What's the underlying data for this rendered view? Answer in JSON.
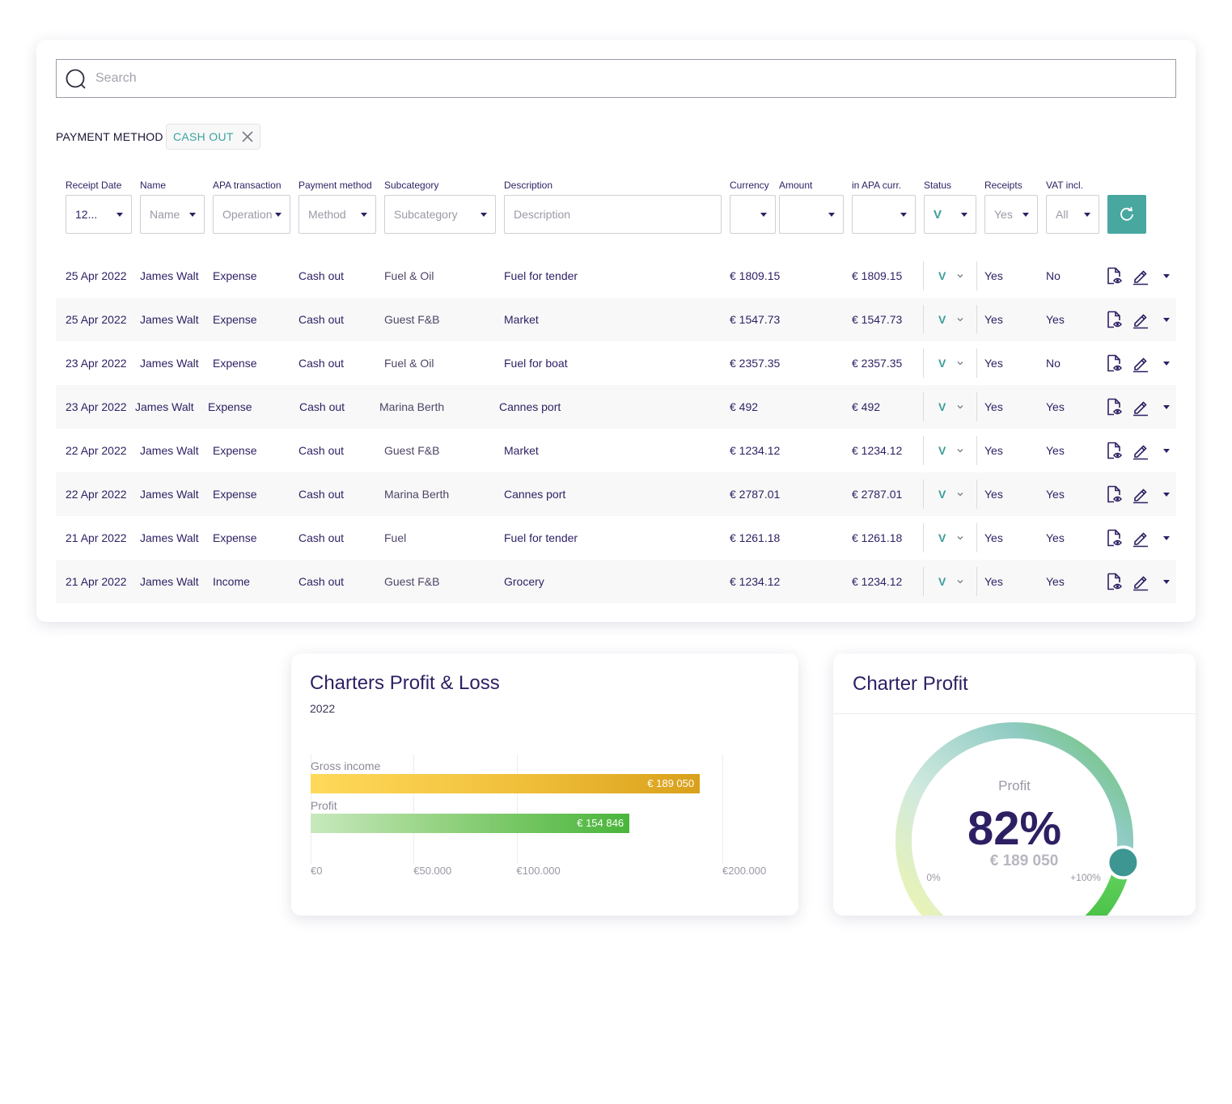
{
  "search": {
    "placeholder": "Search"
  },
  "filter": {
    "label": "PAYMENT METHOD",
    "chip": "CASH OUT"
  },
  "columns": {
    "receipt_date": "Receipt Date",
    "name": "Name",
    "apa_transaction": "APA transaction",
    "payment_method": "Payment method",
    "subcategory": "Subcategory",
    "description": "Description",
    "currency": "Currency",
    "amount": "Amount",
    "in_apa_curr": "in APA curr.",
    "status": "Status",
    "receipts": "Receipts",
    "vat_incl": "VAT incl."
  },
  "controls": {
    "receipt_date": "12...",
    "name": "Name",
    "operation": "Operation",
    "method": "Method",
    "subcategory": "Subcategory",
    "description": "Description",
    "currency": "",
    "amount": "",
    "in_apa_curr": "",
    "status": "V",
    "receipts": "Yes",
    "vat": "All"
  },
  "rows": [
    {
      "date": "25 Apr 2022",
      "name": "James Walt",
      "apa": "Expense",
      "method": "Cash out",
      "subcategory": "Fuel & Oil",
      "description": "Fuel for tender",
      "amount": "€ 1809.15",
      "apa_amount": "€ 1809.15",
      "status": "V",
      "receipts": "Yes",
      "vat": "No"
    },
    {
      "date": "25 Apr 2022",
      "name": "James Walt",
      "apa": "Expense",
      "method": "Cash out",
      "subcategory": "Guest F&B",
      "description": "Market",
      "amount": "€ 1547.73",
      "apa_amount": "€ 1547.73",
      "status": "V",
      "receipts": "Yes",
      "vat": "Yes"
    },
    {
      "date": "23 Apr 2022",
      "name": "James Walt",
      "apa": "Expense",
      "method": "Cash out",
      "subcategory": "Fuel & Oil",
      "description": "Fuel for boat",
      "amount": "€ 2357.35",
      "apa_amount": "€ 2357.35",
      "status": "V",
      "receipts": "Yes",
      "vat": "No"
    },
    {
      "date": "23 Apr 2022",
      "name": "James Walt",
      "apa": "Expense",
      "method": "Cash out",
      "subcategory": "Marina Berth",
      "description": "Cannes port",
      "amount": "€ 492",
      "apa_amount": "€ 492",
      "status": "V",
      "receipts": "Yes",
      "vat": "Yes"
    },
    {
      "date": "22 Apr 2022",
      "name": "James Walt",
      "apa": "Expense",
      "method": "Cash out",
      "subcategory": "Guest F&B",
      "description": "Market",
      "amount": "€ 1234.12",
      "apa_amount": "€ 1234.12",
      "status": "V",
      "receipts": "Yes",
      "vat": "Yes"
    },
    {
      "date": "22 Apr 2022",
      "name": "James Walt",
      "apa": "Expense",
      "method": "Cash out",
      "subcategory": "Marina Berth",
      "description": "Cannes port",
      "amount": "€ 2787.01",
      "apa_amount": "€ 2787.01",
      "status": "V",
      "receipts": "Yes",
      "vat": "Yes"
    },
    {
      "date": "21 Apr 2022",
      "name": "James Walt",
      "apa": "Expense",
      "method": "Cash out",
      "subcategory": "Fuel",
      "description": "Fuel for tender",
      "amount": "€ 1261.18",
      "apa_amount": "€ 1261.18",
      "status": "V",
      "receipts": "Yes",
      "vat": "Yes"
    },
    {
      "date": "21 Apr 2022",
      "name": "James Walt",
      "apa": "Income",
      "method": "Cash out",
      "subcategory": "Guest F&B",
      "description": "Grocery",
      "amount": "€ 1234.12",
      "apa_amount": "€ 1234.12",
      "status": "V",
      "receipts": "Yes",
      "vat": "Yes"
    }
  ],
  "pl_card": {
    "title": "Charters Profit & Loss",
    "subtitle": "2022"
  },
  "profit_card": {
    "title": "Charter Profit",
    "label": "Profit",
    "percent": "82%",
    "amount": "€ 189 050",
    "min_label": "0%",
    "max_label": "+100%"
  },
  "chart_data": [
    {
      "type": "bar",
      "orientation": "horizontal",
      "title": "Charters Profit & Loss",
      "subtitle": "2022",
      "categories": [
        "Gross income",
        "Profit"
      ],
      "values": [
        189050,
        154846
      ],
      "value_labels": [
        "€ 189 050",
        "€ 154 846"
      ],
      "xlim": [
        0,
        200000
      ],
      "x_ticks": [
        0,
        50000,
        100000,
        200000
      ],
      "x_tick_labels": [
        "€0",
        "€50.000",
        "€100.000",
        "€200.000"
      ],
      "grid": true,
      "colors": [
        "#f4c542",
        "#4cbb3d"
      ]
    },
    {
      "type": "gauge",
      "title": "Charter Profit",
      "label": "Profit",
      "value": 82,
      "range": [
        0,
        100
      ],
      "range_labels": [
        "0%",
        "+100%"
      ],
      "value_label": "82%",
      "amount_label": "€ 189 050"
    }
  ],
  "colors": {
    "accent": "#48a8a0",
    "text": "#2e1f63",
    "gold": "#e2a91e",
    "green": "#4cbb3d"
  }
}
